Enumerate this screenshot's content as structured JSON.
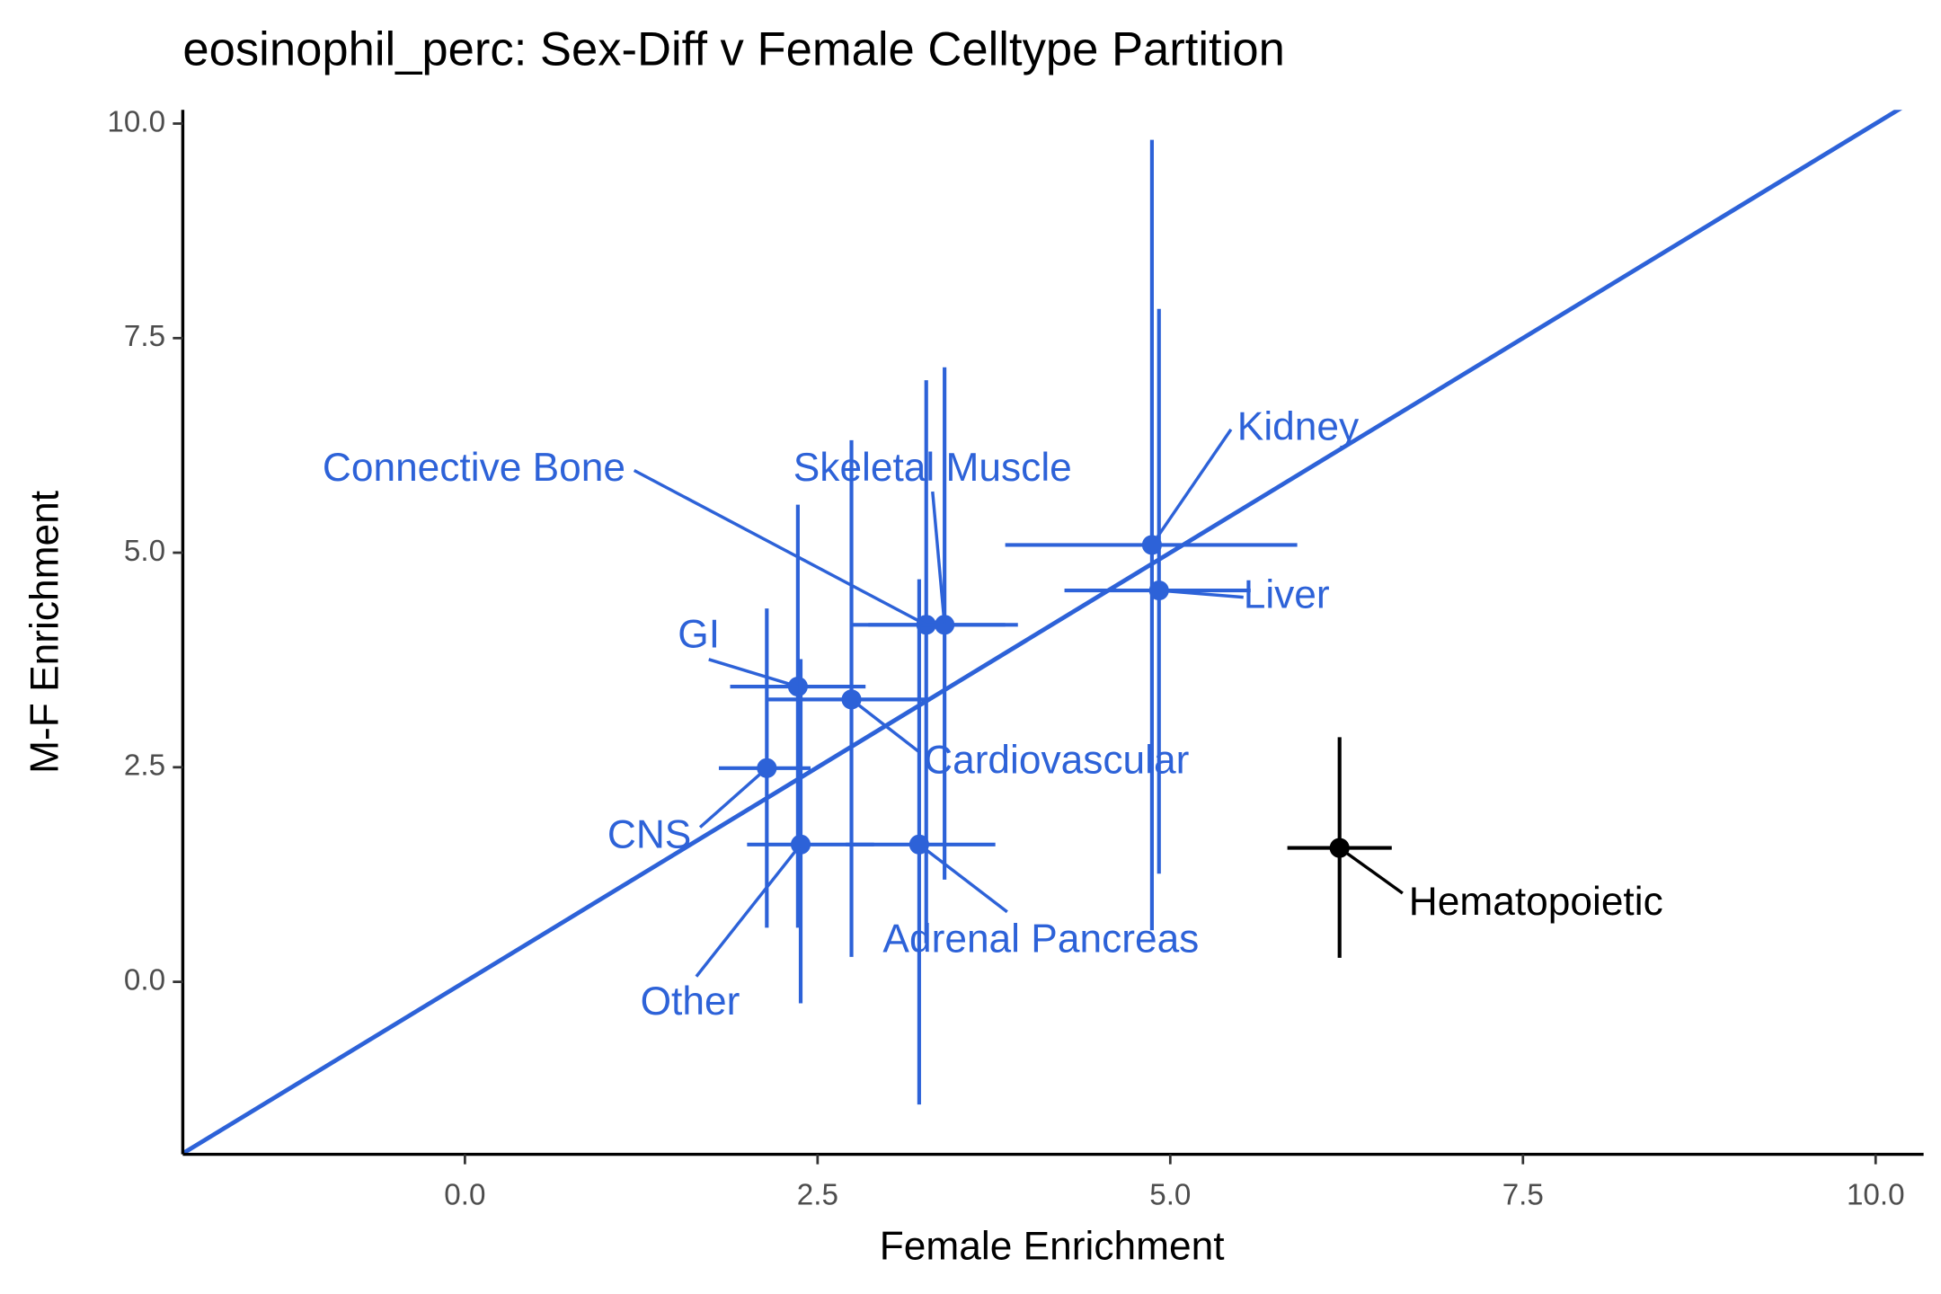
{
  "chart_data": {
    "type": "scatter",
    "title": "eosinophil_perc: Sex-Diff v Female Celltype Partition",
    "x_label": "Female Enrichment",
    "y_label": "M-F Enrichment",
    "xlim": [
      -2.0,
      10.34
    ],
    "ylim": [
      -2.01,
      10.16
    ],
    "xticks": [
      {
        "value": 0,
        "label": "0.0"
      },
      2.5,
      {
        "value": 5,
        "label": "5.0"
      },
      7.5,
      {
        "value": 10,
        "label": "10.0"
      }
    ],
    "yticks": [
      {
        "value": 0,
        "label": "0.0"
      },
      2.5,
      {
        "value": 5,
        "label": "5.0"
      },
      7.5,
      {
        "value": 10,
        "label": "10.0"
      }
    ],
    "points": [
      {
        "label": "Kidney",
        "x": 4.87,
        "y": 5.09,
        "xmin": 3.83,
        "xmax": 5.9,
        "ymin": 0.6,
        "ymax": 9.81,
        "color": "#2d62d8"
      },
      {
        "label": "Liver",
        "x": 4.92,
        "y": 4.56,
        "xmin": 4.25,
        "xmax": 5.57,
        "ymin": 1.26,
        "ymax": 7.84,
        "color": "#2d62d8"
      },
      {
        "label": "Connective Bone",
        "x": 3.27,
        "y": 4.16,
        "xmin": 2.75,
        "xmax": 3.83,
        "ymin": 0.45,
        "ymax": 7.01,
        "color": "#2d62d8"
      },
      {
        "label": "Skeletal Muscle",
        "x": 3.4,
        "y": 4.16,
        "xmin": 2.86,
        "xmax": 3.92,
        "ymin": 1.19,
        "ymax": 7.16,
        "color": "#2d62d8"
      },
      {
        "label": "GI",
        "x": 2.36,
        "y": 3.44,
        "xmin": 1.88,
        "xmax": 2.84,
        "ymin": 0.63,
        "ymax": 5.56,
        "color": "#2d62d8"
      },
      {
        "label": "Cardiovascular",
        "x": 2.74,
        "y": 3.29,
        "xmin": 2.14,
        "xmax": 3.3,
        "ymin": 0.29,
        "ymax": 6.31,
        "color": "#2d62d8"
      },
      {
        "label": "CNS",
        "x": 2.14,
        "y": 2.49,
        "xmin": 1.8,
        "xmax": 2.45,
        "ymin": 0.63,
        "ymax": 4.35,
        "color": "#2d62d8"
      },
      {
        "label": "Other",
        "x": 2.38,
        "y": 1.6,
        "xmin": 2.0,
        "xmax": 2.9,
        "ymin": -0.25,
        "ymax": 3.76,
        "color": "#2d62d8"
      },
      {
        "label": "Adrenal Pancreas",
        "x": 3.22,
        "y": 1.6,
        "xmin": 2.7,
        "xmax": 3.76,
        "ymin": -1.43,
        "ymax": 4.69,
        "color": "#2d62d8"
      },
      {
        "label": "Hematopoietic",
        "x": 6.2,
        "y": 1.56,
        "xmin": 5.83,
        "xmax": 6.57,
        "ymin": 0.28,
        "ymax": 2.85,
        "color": "#000000"
      }
    ],
    "reference_line_color": "#2d62d8"
  }
}
